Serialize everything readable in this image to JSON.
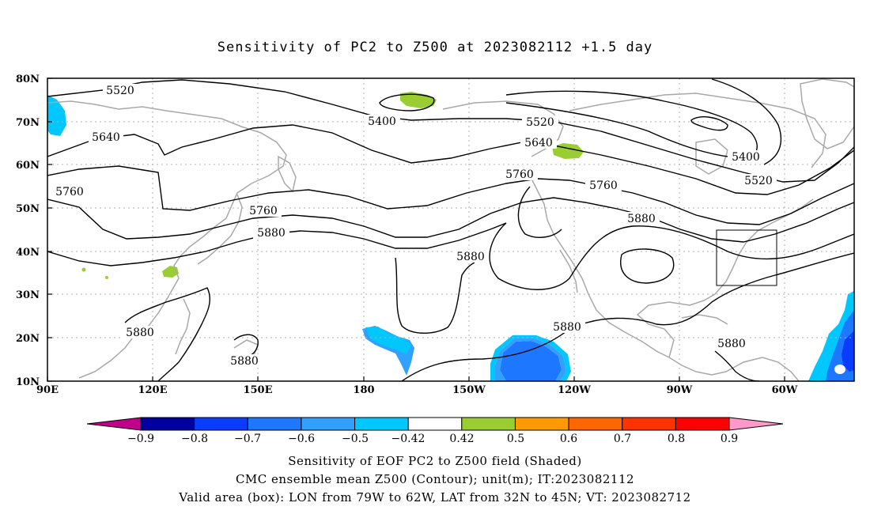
{
  "title": "Sensitivity of PC2 to Z500 at 2023082112 +1.5 day",
  "lat_labels": [
    "80N",
    "70N",
    "60N",
    "50N",
    "40N",
    "30N",
    "20N",
    "10N"
  ],
  "lon_labels": [
    "90E",
    "120E",
    "150E",
    "180",
    "150W",
    "120W",
    "90W",
    "60W"
  ],
  "contour_labels": {
    "c5520a": "5520",
    "c5640a": "5640",
    "c5760a": "5760",
    "c5400a": "5400",
    "c5520b": "5520",
    "c5640b": "5640",
    "c5760b": "5760",
    "c5880a": "5880",
    "c5760c": "5760",
    "c5760d": "5760",
    "c5880b": "5880",
    "c5400b": "5400",
    "c5520c": "5520",
    "c5880c": "5880",
    "c5880d": "5880",
    "c5880e": "5880",
    "c5880f": "5880",
    "c5880g": "5880"
  },
  "colorbar": {
    "labels": [
      "−0.9",
      "−0.8",
      "−0.7",
      "−0.6",
      "−0.5",
      "−0.42",
      "0.42",
      "0.5",
      "0.6",
      "0.7",
      "0.8",
      "0.9"
    ],
    "colors": [
      "#0000a0",
      "#0a3cff",
      "#1e78ff",
      "#32a0ff",
      "#00c8ff",
      "#ffffff",
      "#9acd32",
      "#ff9900",
      "#ff6600",
      "#ff3300",
      "#ff0000"
    ],
    "low_color": "#c0008a",
    "high_color": "#ff99cc"
  },
  "captions": {
    "line1": "Sensitivity of EOF PC2 to Z500 field (Shaded)",
    "line2": "CMC ensemble mean Z500 (Contour); unit(m); IT:2023082112",
    "line3": "Valid area (box): LON from 79W to 62W, LAT from 32N to 45N; VT: 2023082712"
  }
}
